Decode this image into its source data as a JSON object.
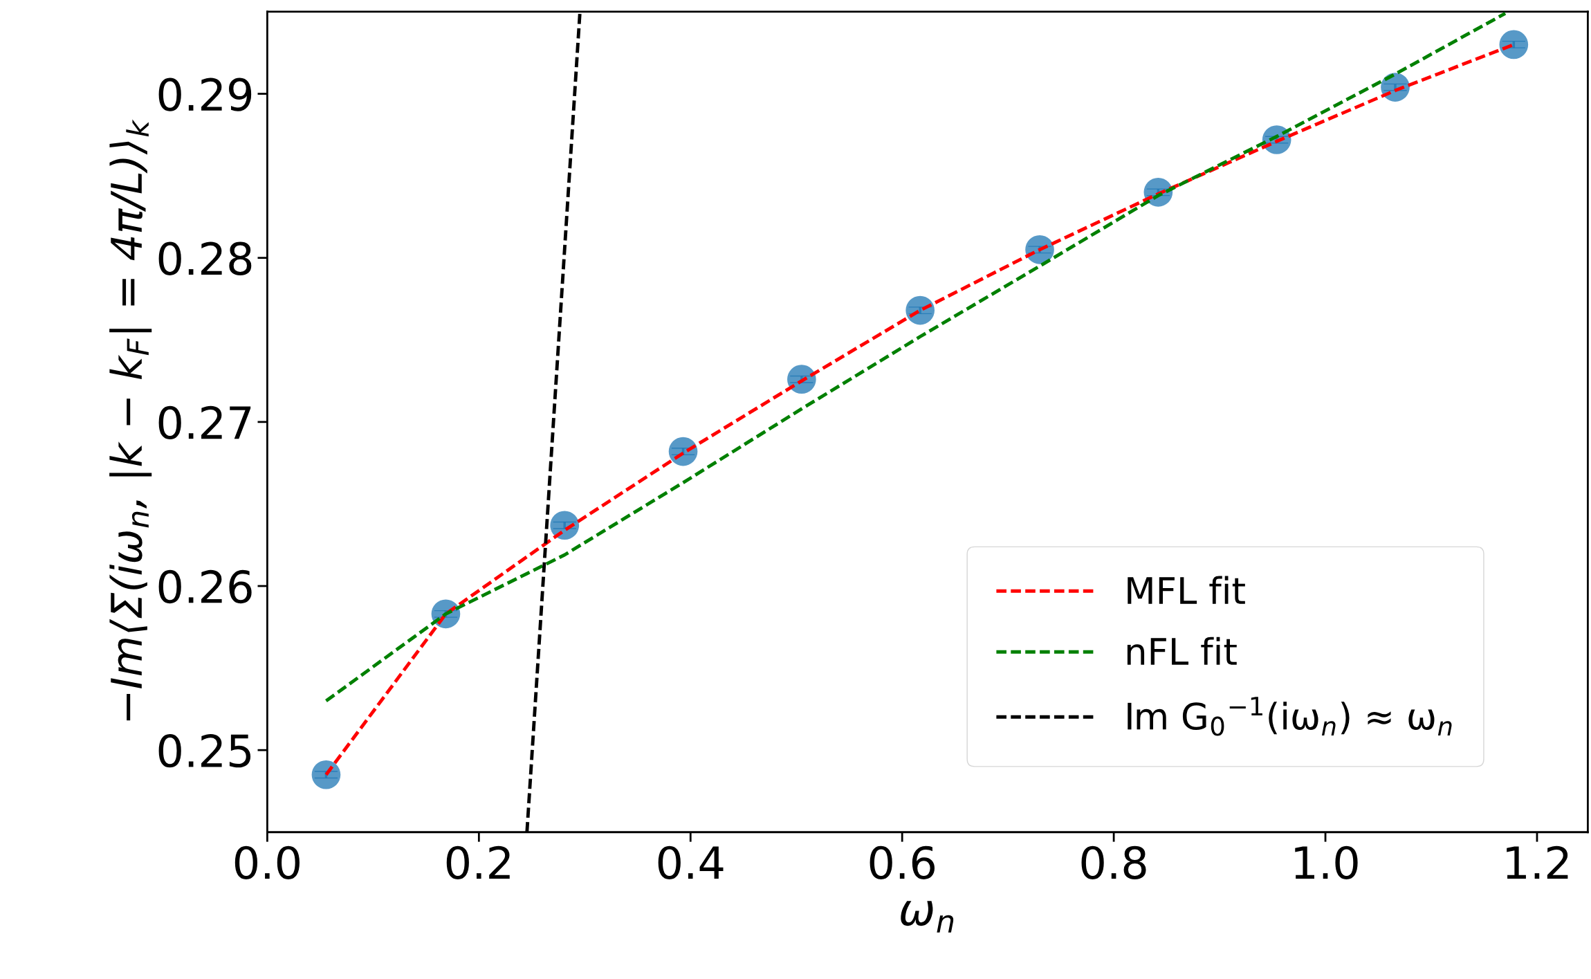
{
  "chart_data": {
    "type": "scatter",
    "xlabel": "ω$_{n}$",
    "ylabel": "−Im⟨Σ(iω$_{n}$, |k − k$_{F}$| = 4π/L)⟩$_{k}$",
    "xlim": [
      0,
      1.248
    ],
    "ylim": [
      0.245,
      0.295
    ],
    "xticks": [
      {
        "value": 0,
        "label": "0.0"
      },
      0.2,
      0.4,
      0.6,
      0.8,
      {
        "value": 1,
        "label": "1.0"
      },
      1.2
    ],
    "yticks": [
      0.25,
      0.26,
      0.27,
      0.28,
      0.29
    ],
    "grid": false,
    "legend": "bottom right",
    "marker": "circle",
    "series": [
      {
        "type": "line",
        "name": "MFL fit",
        "color": "#ff0000",
        "line_style": "dashed",
        "marker": "none",
        "x": [
          0.0556,
          0.1687,
          0.281,
          0.393,
          0.505,
          0.617,
          0.73,
          0.842,
          0.954,
          1.066,
          1.178
        ],
        "values": [
          0.2485,
          0.2583,
          0.2634,
          0.2681,
          0.2725,
          0.2768,
          0.2805,
          0.2839,
          0.2871,
          0.2902,
          0.293
        ]
      },
      {
        "type": "line",
        "name": "nFL fit",
        "color": "#008000",
        "line_style": "dashed",
        "marker": "none",
        "x": [
          0.0556,
          0.1687,
          0.281,
          0.393,
          0.505,
          0.617,
          0.73,
          0.842,
          0.954,
          1.066,
          1.17
        ],
        "values": [
          0.253,
          0.2583,
          0.2619,
          0.2663,
          0.2708,
          0.2752,
          0.2795,
          0.2838,
          0.2874,
          0.2912,
          0.2949
        ]
      },
      {
        "type": "line",
        "name": "Im G$_{0}$$^{−1}$(iω$_{n}$) ≈ ω$_{n}$",
        "color": "#000000",
        "line_style": "dashed",
        "marker": "none",
        "x": [
          0.2454,
          0.2955
        ],
        "values": [
          0.245,
          0.295
        ]
      },
      {
        "color": "#1f77b4",
        "x": [
          0.0556,
          0.1687,
          0.281,
          0.393,
          0.505,
          0.617,
          0.73,
          0.842,
          0.954,
          1.066,
          1.178
        ],
        "values": [
          0.2485,
          0.2583,
          0.2637,
          0.2682,
          0.2726,
          0.2768,
          0.2805,
          0.284,
          0.2872,
          0.2904,
          0.293
        ],
        "errors": [
          0.0002,
          0.0002,
          0.0002,
          0.0002,
          0.0002,
          0.0002,
          0.0002,
          0.0002,
          0.0002,
          0.0002,
          0.0002
        ]
      }
    ]
  }
}
